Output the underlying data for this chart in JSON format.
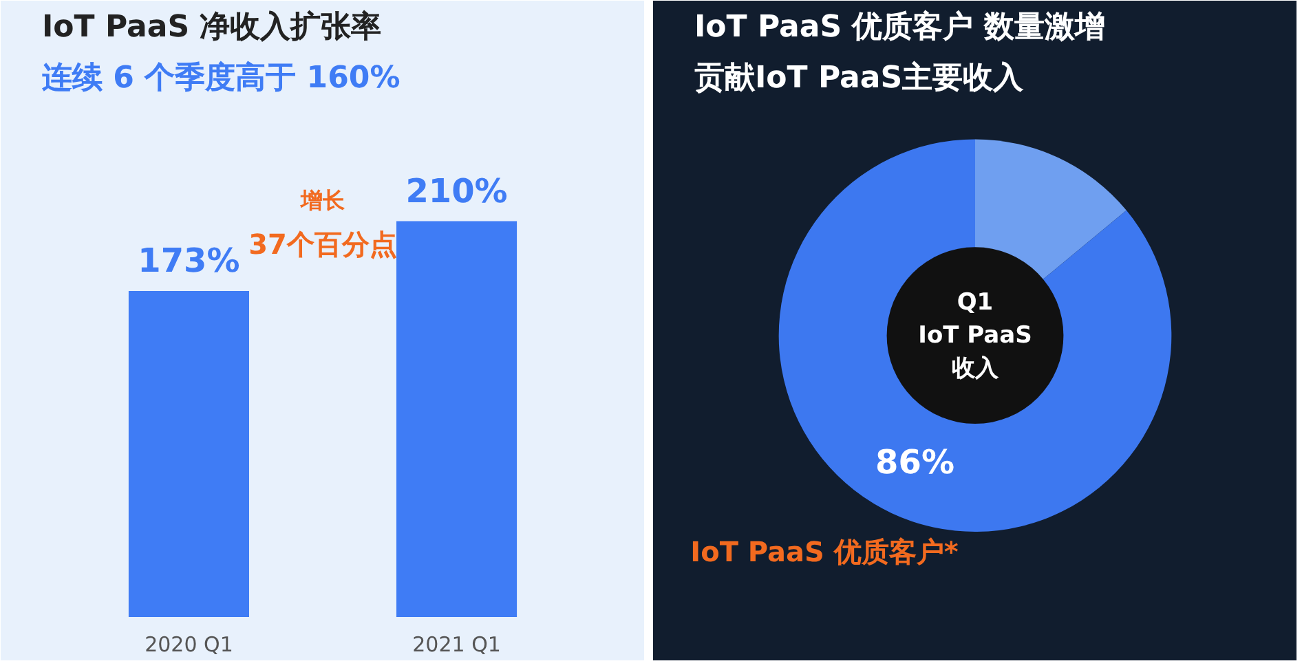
{
  "chart_data": [
    {
      "type": "bar",
      "title": "IoT PaaS 净收入扩张率",
      "subtitle": "连续 6 个季度高于 160%",
      "categories": [
        "2020 Q1",
        "2021 Q1"
      ],
      "values": [
        173,
        210
      ],
      "value_labels": [
        "173%",
        "210%"
      ],
      "color": "#3f7cf5",
      "grid": false,
      "annotations": [
        "增长",
        "37个百分点"
      ]
    },
    {
      "type": "donut",
      "title": "IoT PaaS 优质客户 数量激增",
      "subtitle": "贡献IoT PaaS主要收入",
      "categories": [
        null,
        "IoT PaaS 优质客户*"
      ],
      "values": [
        14,
        86
      ],
      "colors": [
        "#6f9ff0",
        "#3d78f0"
      ],
      "value_labels": [
        null,
        "86%"
      ],
      "annotations": [
        "Q1\nIoT PaaS\n收入"
      ]
    }
  ]
}
